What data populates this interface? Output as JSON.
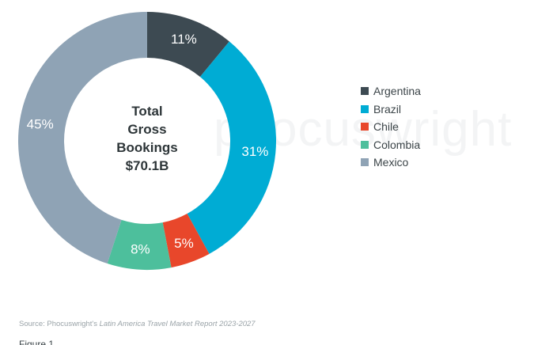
{
  "chart_data": {
    "type": "pie",
    "categories": [
      "Argentina",
      "Brazil",
      "Chile",
      "Colombia",
      "Mexico"
    ],
    "values": [
      11,
      31,
      5,
      8,
      45
    ],
    "value_labels": [
      "11%",
      "31%",
      "5%",
      "8%",
      "45%"
    ],
    "colors": [
      "#3d4a52",
      "#00acd4",
      "#e8472b",
      "#4dbf9c",
      "#8fa3b5"
    ],
    "center_text": [
      "Total",
      "Gross",
      "Bookings",
      "$70.1B"
    ],
    "legend_placement": "right",
    "donut": true
  },
  "watermark": "phocuswright",
  "source": {
    "prefix": "Source: Phocuswright's ",
    "title": "Latin America Travel Market Report 2023-2027"
  },
  "figure_label": "Figure 1"
}
